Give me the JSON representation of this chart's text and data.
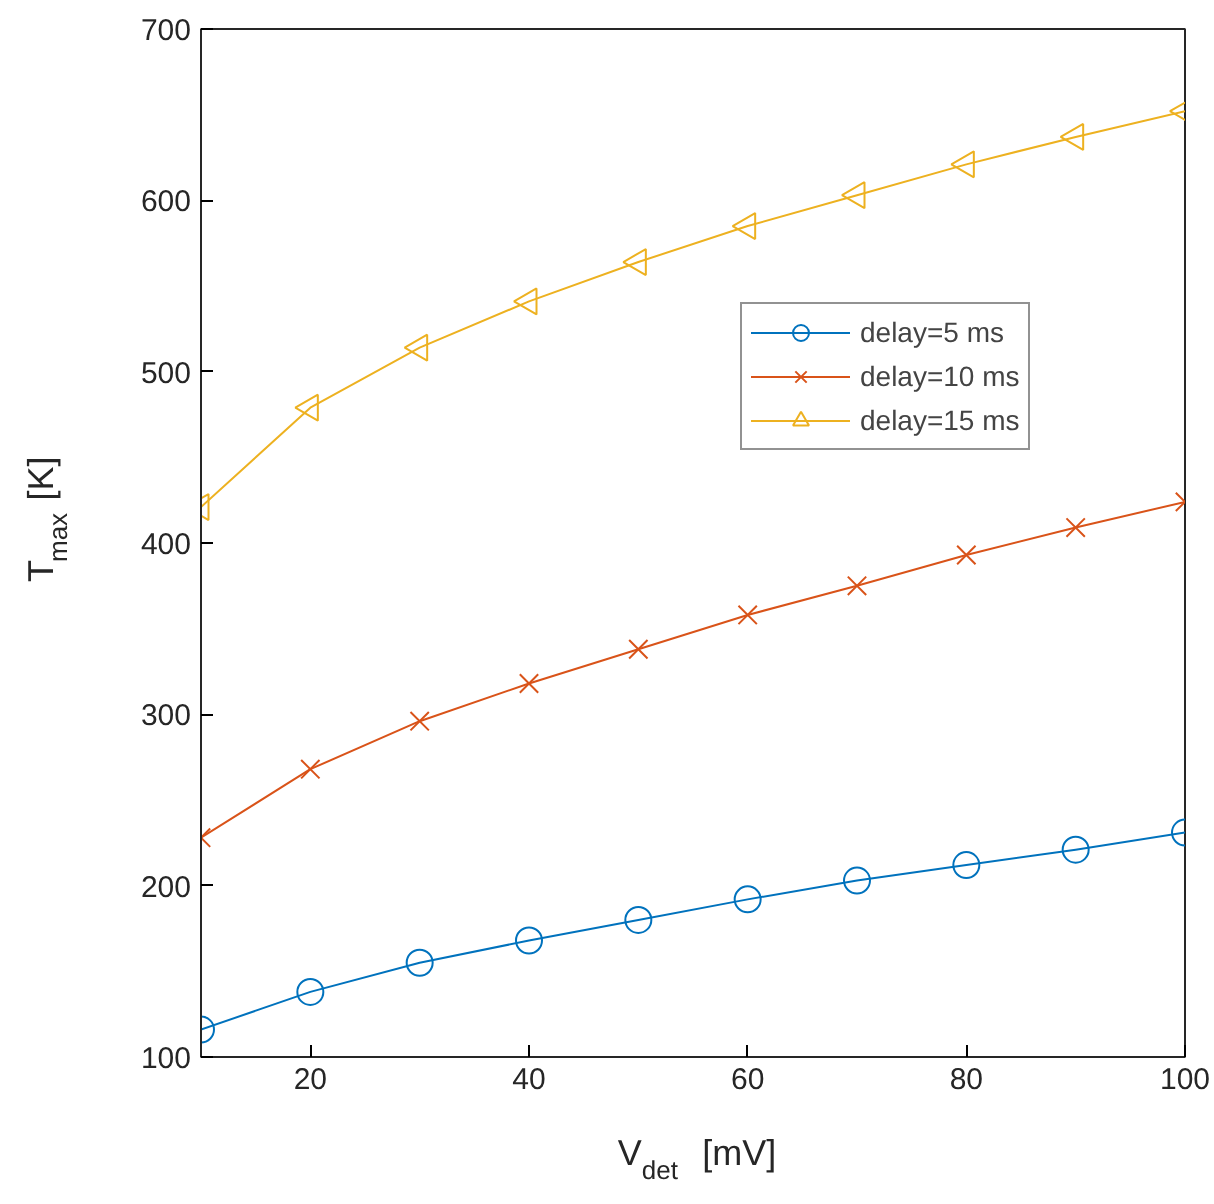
{
  "chart_data": {
    "type": "line",
    "xlabel": "V$_{det}$ [mV]",
    "ylabel": "T$_{max}$ [K]",
    "x": [
      10,
      20,
      30,
      40,
      50,
      60,
      70,
      80,
      90,
      100
    ],
    "xlim": [
      10,
      100
    ],
    "xticks": [
      20,
      40,
      60,
      80,
      100
    ],
    "ylim": [
      100,
      700
    ],
    "yticks": [
      100,
      200,
      300,
      400,
      500,
      600,
      700
    ],
    "grid": false,
    "legend": "right",
    "line_style": "solid",
    "series": [
      {
        "name": "delay=5 ms",
        "color": "#0072bd",
        "marker": "circle",
        "values": [
          116,
          138,
          155,
          168,
          180,
          192,
          203,
          212,
          221,
          231
        ]
      },
      {
        "name": "delay=10 ms",
        "color": "#d95319",
        "marker": "cross",
        "values": [
          228,
          268,
          296,
          318,
          338,
          358,
          375,
          393,
          409,
          424
        ]
      },
      {
        "name": "delay=15 ms",
        "color": "#edb120",
        "marker": "triangle",
        "values": [
          421,
          479,
          514,
          541,
          564,
          585,
          603,
          621,
          637,
          652
        ]
      }
    ]
  }
}
